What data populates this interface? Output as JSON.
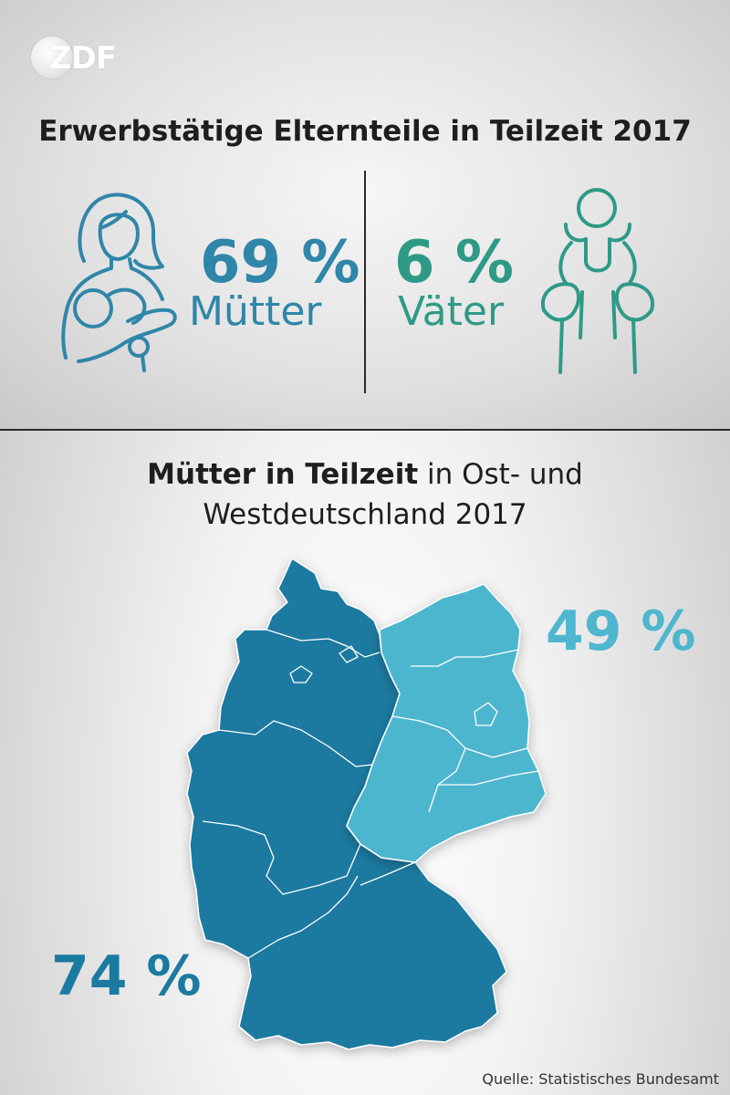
{
  "brand": {
    "logo_text": "ZDF"
  },
  "title": "Erwerbstätige Elternteile in Teilzeit 2017",
  "parents": {
    "mothers": {
      "value": "69 %",
      "label": "Mütter",
      "color": "#2f86a8",
      "icon": "mother-with-child-icon"
    },
    "fathers": {
      "value": "6 %",
      "label": "Väter",
      "color": "#2e9a86",
      "icon": "father-with-child-icon"
    }
  },
  "map_title": {
    "bold": "Mütter in Teilzeit",
    "rest": " in Ost- und",
    "line2": "Westdeutschland 2017"
  },
  "regions": {
    "east": {
      "value": "49 %",
      "color": "#4eb6cf"
    },
    "west": {
      "value": "74 %",
      "color": "#1a7aa0"
    }
  },
  "source": "Quelle: Statistisches Bundesamt",
  "chart_data": [
    {
      "type": "bar",
      "title": "Erwerbstätige Elternteile in Teilzeit 2017",
      "categories": [
        "Mütter",
        "Väter"
      ],
      "values": [
        69,
        6
      ],
      "unit": "%"
    },
    {
      "type": "map",
      "title": "Mütter in Teilzeit in Ost- und Westdeutschland 2017",
      "categories": [
        "Ostdeutschland",
        "Westdeutschland"
      ],
      "values": [
        49,
        74
      ],
      "unit": "%"
    }
  ]
}
